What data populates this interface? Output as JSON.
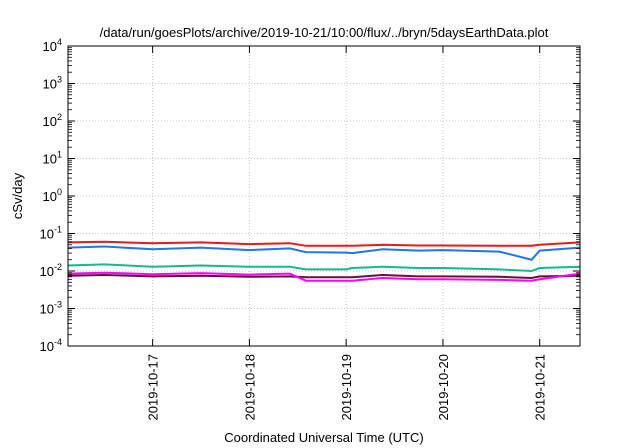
{
  "chart_data": {
    "type": "line",
    "title": "/data/run/goesPlots/archive/2019-10-21/10:00/flux/../bryn/5daysEarthData.plot",
    "xlabel": "Coordinated Universal Time (UTC)",
    "ylabel": "cSv/day",
    "x_scale": "time",
    "y_scale": "log",
    "xlim": [
      "2019-10-16T03:00",
      "2019-10-21T10:00"
    ],
    "ylim": [
      0.0001,
      10000
    ],
    "grid": true,
    "legend": "none",
    "x_ticks": [
      {
        "value": "2019-10-17T00:00",
        "label": "2019-10-17"
      },
      {
        "value": "2019-10-18T00:00",
        "label": "2019-10-18"
      },
      {
        "value": "2019-10-19T00:00",
        "label": "2019-10-19"
      },
      {
        "value": "2019-10-20T00:00",
        "label": "2019-10-20"
      },
      {
        "value": "2019-10-21T00:00",
        "label": "2019-10-21"
      }
    ],
    "y_ticks": [
      {
        "value": 0.0001,
        "base": "10",
        "exp": "-4"
      },
      {
        "value": 0.001,
        "base": "10",
        "exp": "-3"
      },
      {
        "value": 0.01,
        "base": "10",
        "exp": "-2"
      },
      {
        "value": 0.1,
        "base": "10",
        "exp": "-1"
      },
      {
        "value": 1,
        "base": "10",
        "exp": "0"
      },
      {
        "value": 10,
        "base": "10",
        "exp": "1"
      },
      {
        "value": 100,
        "base": "10",
        "exp": "2"
      },
      {
        "value": 1000,
        "base": "10",
        "exp": "3"
      },
      {
        "value": 10000,
        "base": "10",
        "exp": "4"
      }
    ],
    "series": [
      {
        "color": "#e41a1c",
        "x": [
          "2019-10-16T03:00",
          "2019-10-16T12:00",
          "2019-10-17T00:00",
          "2019-10-17T12:00",
          "2019-10-18T00:00",
          "2019-10-18T10:00",
          "2019-10-18T14:00",
          "2019-10-19T00:00",
          "2019-10-19T01:30",
          "2019-10-19T09:00",
          "2019-10-19T18:00",
          "2019-10-20T00:00",
          "2019-10-20T14:00",
          "2019-10-20T22:00",
          "2019-10-21T00:00",
          "2019-10-21T10:00"
        ],
        "y": [
          0.058,
          0.06,
          0.055,
          0.058,
          0.052,
          0.055,
          0.047,
          0.047,
          0.047,
          0.05,
          0.048,
          0.048,
          0.047,
          0.047,
          0.05,
          0.058
        ]
      },
      {
        "color": "#1f77e8",
        "x": [
          "2019-10-16T03:00",
          "2019-10-16T12:00",
          "2019-10-17T00:00",
          "2019-10-17T12:00",
          "2019-10-18T00:00",
          "2019-10-18T10:00",
          "2019-10-18T14:00",
          "2019-10-19T00:00",
          "2019-10-19T01:30",
          "2019-10-19T09:00",
          "2019-10-19T18:00",
          "2019-10-20T00:00",
          "2019-10-20T14:00",
          "2019-10-20T22:00",
          "2019-10-21T00:00",
          "2019-10-21T10:00"
        ],
        "y": [
          0.042,
          0.045,
          0.038,
          0.042,
          0.036,
          0.04,
          0.032,
          0.031,
          0.03,
          0.038,
          0.035,
          0.036,
          0.033,
          0.02,
          0.035,
          0.042
        ]
      },
      {
        "color": "#17b890",
        "x": [
          "2019-10-16T03:00",
          "2019-10-16T12:00",
          "2019-10-17T00:00",
          "2019-10-17T12:00",
          "2019-10-18T00:00",
          "2019-10-18T10:00",
          "2019-10-18T14:00",
          "2019-10-19T00:00",
          "2019-10-19T01:30",
          "2019-10-19T09:00",
          "2019-10-19T18:00",
          "2019-10-20T00:00",
          "2019-10-20T14:00",
          "2019-10-20T22:00",
          "2019-10-21T00:00",
          "2019-10-21T10:00"
        ],
        "y": [
          0.014,
          0.015,
          0.013,
          0.014,
          0.013,
          0.013,
          0.011,
          0.011,
          0.012,
          0.013,
          0.012,
          0.012,
          0.011,
          0.01,
          0.012,
          0.013
        ]
      },
      {
        "color": "#6a0f3a",
        "x": [
          "2019-10-16T03:00",
          "2019-10-16T12:00",
          "2019-10-17T00:00",
          "2019-10-17T12:00",
          "2019-10-18T00:00",
          "2019-10-18T10:00",
          "2019-10-18T14:00",
          "2019-10-19T00:00",
          "2019-10-19T01:30",
          "2019-10-19T09:00",
          "2019-10-19T18:00",
          "2019-10-20T00:00",
          "2019-10-20T14:00",
          "2019-10-20T22:00",
          "2019-10-21T00:00",
          "2019-10-21T10:00"
        ],
        "y": [
          0.0075,
          0.0078,
          0.0072,
          0.0075,
          0.007,
          0.0072,
          0.0068,
          0.0068,
          0.0068,
          0.0078,
          0.0072,
          0.0072,
          0.007,
          0.0065,
          0.0072,
          0.0075
        ]
      },
      {
        "color": "#ff00ff",
        "x": [
          "2019-10-16T03:00",
          "2019-10-16T12:00",
          "2019-10-17T00:00",
          "2019-10-17T12:00",
          "2019-10-18T00:00",
          "2019-10-18T10:00",
          "2019-10-18T14:00",
          "2019-10-19T00:00",
          "2019-10-19T01:30",
          "2019-10-19T09:00",
          "2019-10-19T18:00",
          "2019-10-20T00:00",
          "2019-10-20T14:00",
          "2019-10-20T22:00",
          "2019-10-21T00:00",
          "2019-10-21T10:00"
        ],
        "y": [
          0.0085,
          0.009,
          0.0082,
          0.0088,
          0.008,
          0.0085,
          0.0055,
          0.0055,
          0.0055,
          0.0065,
          0.006,
          0.006,
          0.0058,
          0.0055,
          0.006,
          0.0085
        ]
      }
    ]
  }
}
